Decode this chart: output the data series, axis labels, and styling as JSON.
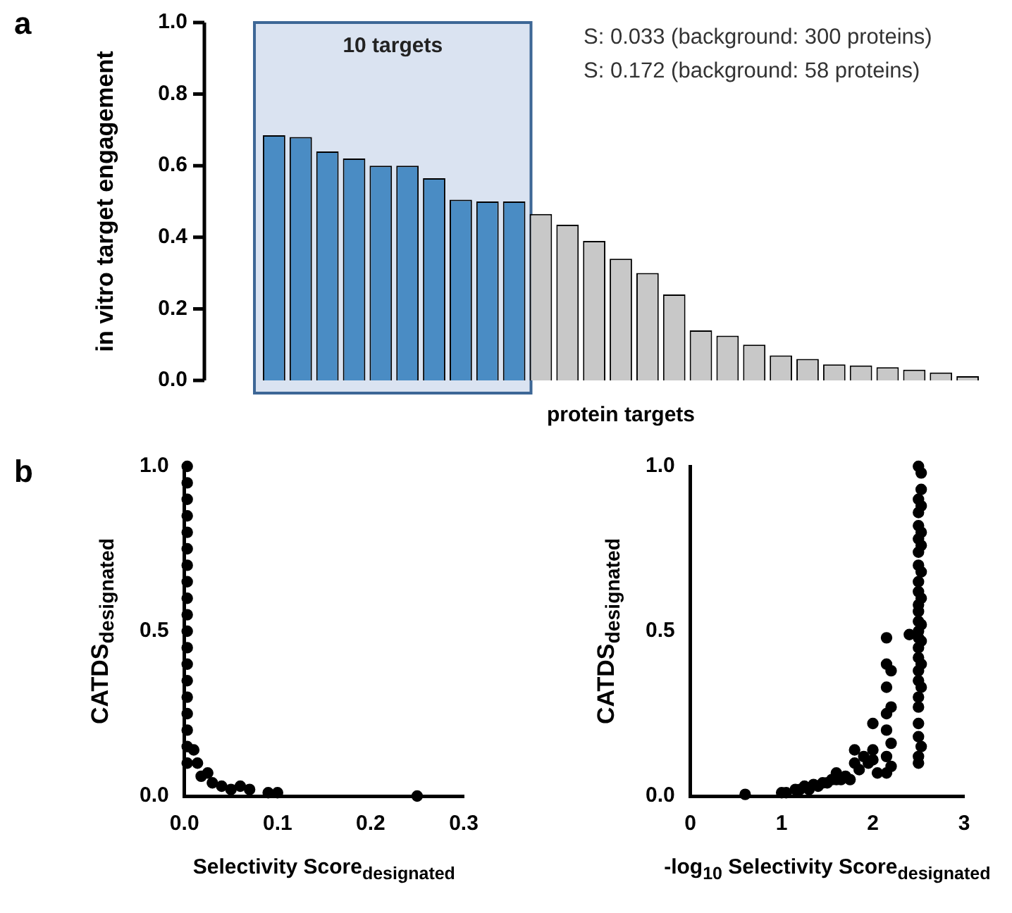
{
  "chart_data": [
    {
      "type": "bar",
      "xlabel": "protein targets",
      "ylabel": "in vitro target engagement",
      "categories": [
        null,
        null,
        null,
        null,
        null,
        null,
        null,
        null,
        null,
        null,
        null,
        null,
        null,
        null,
        null,
        null,
        null,
        null,
        null,
        null,
        null,
        null,
        null,
        null,
        null,
        null,
        null
      ],
      "values": [
        0.685,
        0.68,
        0.64,
        0.62,
        0.6,
        0.6,
        0.565,
        0.505,
        0.5,
        0.5,
        0.465,
        0.435,
        0.39,
        0.34,
        0.3,
        0.24,
        0.14,
        0.125,
        0.1,
        0.07,
        0.06,
        0.045,
        0.042,
        0.037,
        0.03,
        0.022,
        0.012
      ],
      "colors": [
        "#4a8cc4",
        "#4a8cc4",
        "#4a8cc4",
        "#4a8cc4",
        "#4a8cc4",
        "#4a8cc4",
        "#4a8cc4",
        "#4a8cc4",
        "#4a8cc4",
        "#4a8cc4",
        "#c8c8c8",
        "#c8c8c8",
        "#c8c8c8",
        "#c8c8c8",
        "#c8c8c8",
        "#c8c8c8",
        "#c8c8c8",
        "#c8c8c8",
        "#c8c8c8",
        "#c8c8c8",
        "#c8c8c8",
        "#c8c8c8",
        "#c8c8c8",
        "#c8c8c8",
        "#c8c8c8",
        "#c8c8c8",
        "#c8c8c8"
      ],
      "ylim": [
        0,
        1
      ],
      "yticks": [
        {
          "value": 0,
          "label": "0.0"
        },
        {
          "value": 0.2,
          "label": "0.2"
        },
        {
          "value": 0.4,
          "label": "0.4"
        },
        {
          "value": 0.6,
          "label": "0.6"
        },
        {
          "value": 0.8,
          "label": "0.8"
        },
        {
          "value": 1,
          "label": "1.0"
        }
      ],
      "tick_labels": "y",
      "annotations": [
        "a",
        "10 targets",
        "S: 0.033 (background: 300 proteins)",
        "S: 0.172 (background: 58 proteins)"
      ]
    },
    {
      "type": "scatter",
      "xlabel": "Selectivity Score$_{designated}$",
      "ylabel": "CATDS$_{designated}$",
      "marker": "circle",
      "series": [
        {
          "color": "#000000",
          "x": [
            0.003,
            0.003,
            0.003,
            0.003,
            0.003,
            0.003,
            0.003,
            0.003,
            0.003,
            0.003,
            0.003,
            0.003,
            0.003,
            0.003,
            0.003,
            0.003,
            0.003,
            0.003,
            0.003,
            0.01,
            0.014,
            0.018,
            0.025,
            0.03,
            0.04,
            0.05,
            0.06,
            0.07,
            0.09,
            0.1,
            0.25
          ],
          "values": [
            0.1,
            0.15,
            0.2,
            0.25,
            0.3,
            0.35,
            0.4,
            0.45,
            0.5,
            0.55,
            0.6,
            0.65,
            0.7,
            0.75,
            0.8,
            0.85,
            0.9,
            0.95,
            1.0,
            0.14,
            0.1,
            0.06,
            0.07,
            0.04,
            0.03,
            0.02,
            0.03,
            0.02,
            0.01,
            0.01,
            0
          ]
        }
      ],
      "xlim": [
        0,
        0.3
      ],
      "xticks": [
        {
          "value": 0,
          "label": "0.0"
        },
        {
          "value": 0.1,
          "label": "0.1"
        },
        {
          "value": 0.2,
          "label": "0.2"
        },
        {
          "value": 0.3,
          "label": "0.3"
        }
      ],
      "ylim": [
        0,
        1
      ],
      "yticks": [
        {
          "value": 0,
          "label": "0.0"
        },
        {
          "value": 0.5,
          "label": "0.5"
        },
        {
          "value": 1,
          "label": "1.0"
        }
      ],
      "annotations": [
        "b"
      ]
    },
    {
      "type": "scatter",
      "xlabel": "-log$_{10}$ Selectivity Score$_{designated}$",
      "ylabel": "CATDS$_{designated}$",
      "marker": "circle",
      "series": [
        {
          "color": "#000000",
          "x": [
            2.5,
            2.5,
            2.53,
            2.5,
            2.5,
            2.5,
            2.5,
            2.53,
            2.5,
            2.5,
            2.53,
            2.5,
            2.5,
            2.53,
            2.5,
            2.5,
            2.53,
            2.5,
            2.5,
            2.5,
            2.53,
            2.5,
            2.5,
            2.53,
            2.5,
            2.5,
            2.53,
            2.5,
            2.53,
            2.5,
            2.5,
            2.53,
            2.5,
            2.53,
            2.53,
            2.5,
            2.4,
            2.2,
            2.2,
            2.2,
            2.2,
            2.15,
            2.15,
            2.15,
            2.15,
            2.15,
            2.15,
            2.15,
            2.05,
            2.0,
            2.0,
            2.0,
            1.95,
            1.9,
            1.85,
            1.8,
            1.8,
            1.75,
            1.7,
            1.65,
            1.6,
            1.6,
            1.55,
            1.5,
            1.45,
            1.4,
            1.35,
            1.3,
            1.25,
            1.2,
            1.15,
            1.05,
            1.0,
            0.6
          ],
          "values": [
            0.1,
            0.12,
            0.15,
            0.18,
            0.22,
            0.27,
            0.3,
            0.33,
            0.35,
            0.38,
            0.4,
            0.42,
            0.45,
            0.47,
            0.48,
            0.5,
            0.52,
            0.53,
            0.56,
            0.58,
            0.6,
            0.62,
            0.65,
            0.68,
            0.7,
            0.74,
            0.76,
            0.78,
            0.8,
            0.82,
            0.86,
            0.88,
            0.9,
            0.93,
            0.98,
            1.0,
            0.49,
            0.38,
            0.27,
            0.16,
            0.09,
            0.48,
            0.4,
            0.33,
            0.25,
            0.2,
            0.12,
            0.07,
            0.07,
            0.22,
            0.14,
            0.11,
            0.1,
            0.12,
            0.08,
            0.14,
            0.1,
            0.05,
            0.06,
            0.05,
            0.07,
            0.05,
            0.05,
            0.04,
            0.04,
            0.03,
            0.035,
            0.02,
            0.03,
            0.02,
            0.02,
            0.01,
            0.01,
            0.005
          ]
        }
      ],
      "xlim": [
        0,
        3
      ],
      "xticks": [
        0,
        1,
        2,
        3
      ],
      "ylim": [
        0,
        1
      ],
      "yticks": [
        {
          "value": 0,
          "label": "0.0"
        },
        {
          "value": 0.5,
          "label": "0.5"
        },
        {
          "value": 1,
          "label": "1.0"
        }
      ]
    }
  ]
}
